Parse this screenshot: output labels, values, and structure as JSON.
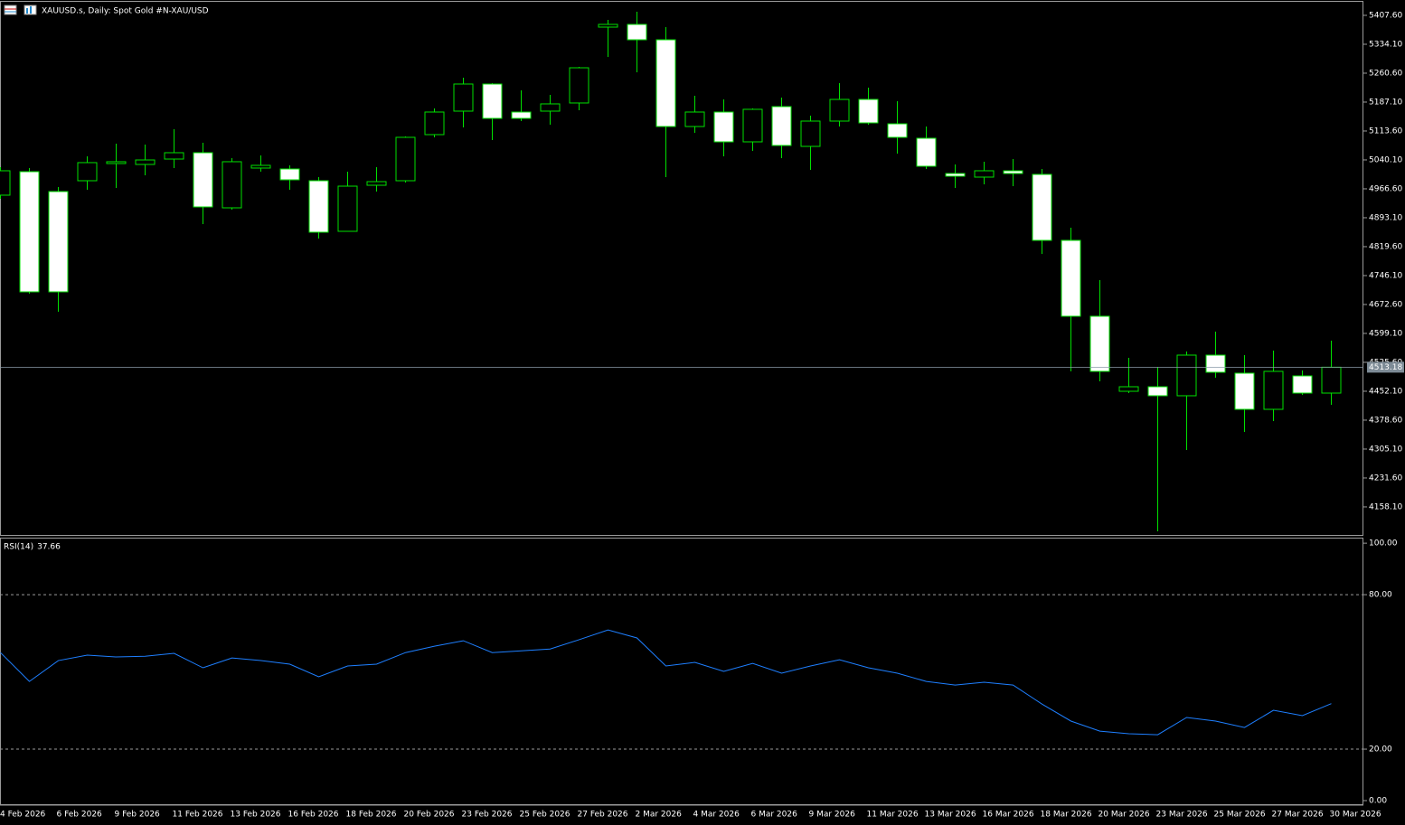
{
  "chart_data": [
    {
      "type": "candlestick",
      "title": "XAUUSD.s, Daily:  Spot Gold #N-XAU/USD",
      "up_color": "#00e000",
      "down_fill": "#ffffff",
      "line_color": "#00e000",
      "categories": [
        "4 Feb 2026",
        null,
        "6 Feb 2026",
        null,
        "9 Feb 2026",
        null,
        "11 Feb 2026",
        null,
        "13 Feb 2026",
        null,
        "16 Feb 2026",
        null,
        "18 Feb 2026",
        null,
        "20 Feb 2026",
        null,
        "23 Feb 2026",
        null,
        "25 Feb 2026",
        null,
        "27 Feb 2026",
        null,
        "2 Mar 2026",
        null,
        "4 Mar 2026",
        null,
        "6 Mar 2026",
        null,
        "9 Mar 2026",
        null,
        "11 Mar 2026",
        null,
        "13 Mar 2026",
        null,
        "16 Mar 2026",
        null,
        "18 Mar 2026",
        null,
        "20 Mar 2026",
        null,
        "23 Mar 2026",
        null,
        "25 Mar 2026",
        null,
        "27 Mar 2026",
        null,
        "30 Mar 2026"
      ],
      "open": [
        4950.5,
        5010.2,
        4959.7,
        4987.2,
        5030.9,
        5028.6,
        5042.3,
        5058.4,
        4918.3,
        5019.4,
        5017.1,
        4987.2,
        4858.6,
        4975.7,
        4987.2,
        5104.4,
        5164.1,
        5233.0,
        5161.8,
        5164.1,
        5184.8,
        5377.7,
        5384.6,
        5345.5,
        5125.0,
        5161.8,
        5086.0,
        5175.6,
        5074.5,
        5138.8,
        5193.9,
        5131.9,
        5095.2,
        5005.6,
        4996.4,
        5012.5,
        5003.3,
        4835.6,
        4642.7,
        4452.0,
        4463.5,
        4440.6,
        4543.9,
        4498.0,
        4406.1,
        4491.1,
        4447.4
      ],
      "high": [
        5021.7,
        5019.4,
        4971.1,
        5049.2,
        5081.4,
        5079.1,
        5118.1,
        5083.7,
        5044.6,
        5051.5,
        5026.3,
        4996.4,
        5010.2,
        5021.7,
        5099.8,
        5171.0,
        5249.1,
        5235.3,
        5216.9,
        5205.4,
        5276.6,
        5396.1,
        5416.7,
        5377.7,
        5203.1,
        5193.9,
        5171.0,
        5198.5,
        5152.6,
        5235.3,
        5223.8,
        5189.3,
        5125.0,
        5028.6,
        5035.5,
        5042.3,
        5017.1,
        4867.8,
        4734.6,
        4537.0,
        4514.1,
        4553.1,
        4603.7,
        4543.9,
        4555.4,
        4504.9,
        4580.7
      ],
      "low": [
        4941.3,
        4700.1,
        4654.2,
        4964.3,
        4968.8,
        5001.0,
        5019.4,
        4877.0,
        4913.7,
        5010.2,
        4964.3,
        4840.2,
        4858.6,
        4959.7,
        4982.6,
        5097.5,
        5122.7,
        5090.6,
        5138.8,
        5129.6,
        5166.4,
        5301.9,
        5262.8,
        4996.4,
        5109.0,
        5049.2,
        5063.0,
        5044.6,
        5014.8,
        5125.0,
        5129.6,
        5056.1,
        5017.1,
        4968.8,
        4978.0,
        4973.4,
        4801.2,
        4502.6,
        4477.3,
        4447.4,
        4096.0,
        4302.7,
        4486.5,
        4348.7,
        4376.2,
        4442.8,
        4417.6
      ],
      "close": [
        5012.5,
        4704.7,
        4704.7,
        5033.2,
        5035.5,
        5040.0,
        5058.4,
        4920.6,
        5035.5,
        5026.3,
        4989.5,
        4856.3,
        4973.4,
        4984.9,
        5097.5,
        5161.8,
        5233.0,
        5145.7,
        5145.7,
        5182.5,
        5274.3,
        5384.6,
        5345.5,
        5125.0,
        5161.8,
        5086.0,
        5168.7,
        5076.8,
        5138.8,
        5193.9,
        5134.2,
        5097.5,
        5024.0,
        4998.7,
        5012.5,
        5005.6,
        4835.6,
        4642.7,
        4502.6,
        4463.5,
        4440.6,
        4543.9,
        4500.3,
        4406.1,
        4502.6,
        4447.4,
        4513.18
      ],
      "ylim": [
        4086.8,
        5444.3
      ],
      "yticks": [
        {
          "value": 5407.6,
          "label": "5407.60"
        },
        {
          "value": 5334.1,
          "label": "5334.10"
        },
        {
          "value": 5260.6,
          "label": "5260.60"
        },
        {
          "value": 5187.1,
          "label": "5187.10"
        },
        {
          "value": 5113.6,
          "label": "5113.60"
        },
        {
          "value": 5040.1,
          "label": "5040.10"
        },
        {
          "value": 4966.6,
          "label": "4966.60"
        },
        {
          "value": 4893.1,
          "label": "4893.10"
        },
        {
          "value": 4819.6,
          "label": "4819.60"
        },
        {
          "value": 4746.1,
          "label": "4746.10"
        },
        {
          "value": 4672.6,
          "label": "4672.60"
        },
        {
          "value": 4599.1,
          "label": "4599.10"
        },
        {
          "value": 4525.6,
          "label": "4525.60"
        },
        {
          "value": 4452.1,
          "label": "4452.10"
        },
        {
          "value": 4378.6,
          "label": "4378.60"
        },
        {
          "value": 4305.1,
          "label": "4305.10"
        },
        {
          "value": 4231.6,
          "label": "4231.60"
        },
        {
          "value": 4158.1,
          "label": "4158.10"
        }
      ]
    },
    {
      "type": "line",
      "series": [
        {
          "name": "RSI(14)",
          "color": "#1e7fff",
          "values": [
            57.5,
            46.3,
            54.4,
            56.5,
            55.8,
            56.1,
            57.2,
            51.6,
            55.4,
            54.4,
            53.0,
            48.1,
            52.3,
            53.0,
            57.5,
            60.0,
            62.1,
            57.5,
            58.2,
            58.9,
            62.5,
            66.3,
            63.2,
            52.3,
            53.7,
            50.2,
            53.3,
            49.5,
            52.3,
            54.7,
            51.6,
            49.5,
            46.3,
            44.9,
            46.0,
            44.9,
            37.5,
            30.9,
            27.0,
            26.0,
            25.6,
            32.3,
            30.9,
            28.4,
            35.1,
            33.0,
            37.66
          ]
        }
      ],
      "ylim": [
        -1.4,
        101.8
      ],
      "yticks": [
        {
          "value": 100,
          "label": "100.00"
        },
        {
          "value": 80,
          "label": "80.00"
        },
        {
          "value": 20,
          "label": "20.00"
        },
        {
          "value": 0,
          "label": "0.00"
        }
      ],
      "levels": [
        80,
        20
      ]
    }
  ]
}
